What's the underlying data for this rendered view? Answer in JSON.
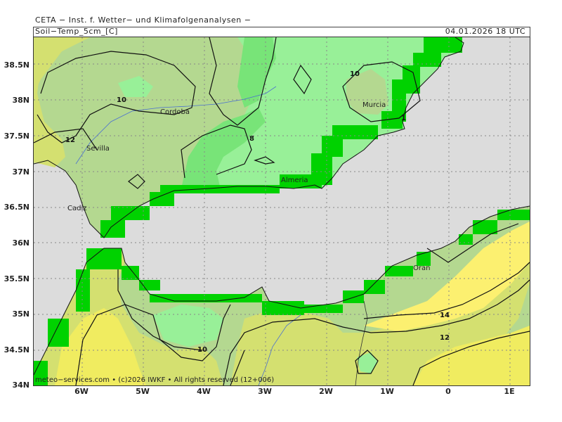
{
  "header": {
    "title": "CETA − Inst. f. Wetter− und Klimafolgenanalysen −",
    "parameter": "Soil−Temp_5cm_[C]",
    "valid_time": "04.01.2026  18 UTC"
  },
  "axes": {
    "lat_labels": [
      "38.5N",
      "38N",
      "37.5N",
      "37N",
      "36.5N",
      "36N",
      "35.5N",
      "35N",
      "34.5N",
      "34N"
    ],
    "lon_labels": [
      "6W",
      "5W",
      "4W",
      "3W",
      "2W",
      "1W",
      "0",
      "1E"
    ]
  },
  "cities": {
    "cordoba": "Cordoba",
    "sevilla": "Sevilla",
    "cadiz": "Cadiz",
    "almeria": "Almeria",
    "murcia": "Murcia",
    "oran": "Oran"
  },
  "contour_labels": {
    "c10_spain": "10",
    "c12_spain": "12",
    "c8_spain": "8",
    "c10_murcia": "10",
    "c10_morocco": "10",
    "c12_algeria": "12",
    "c14_algeria": "14",
    "c1_murcia": "1"
  },
  "colors": {
    "sea": "#dcdcdc",
    "t6_8": "#98f098",
    "t8_10": "#78e478",
    "t10_12": "#b4d890",
    "t12_14": "#d4e070",
    "t14_16": "#f0ec60",
    "t16_18": "#fcf070",
    "coast_cell": "#00d200"
  },
  "footer": {
    "credit": "meteo−services.com • (c)2026 IWKF • All rights reserved (12+006)"
  }
}
